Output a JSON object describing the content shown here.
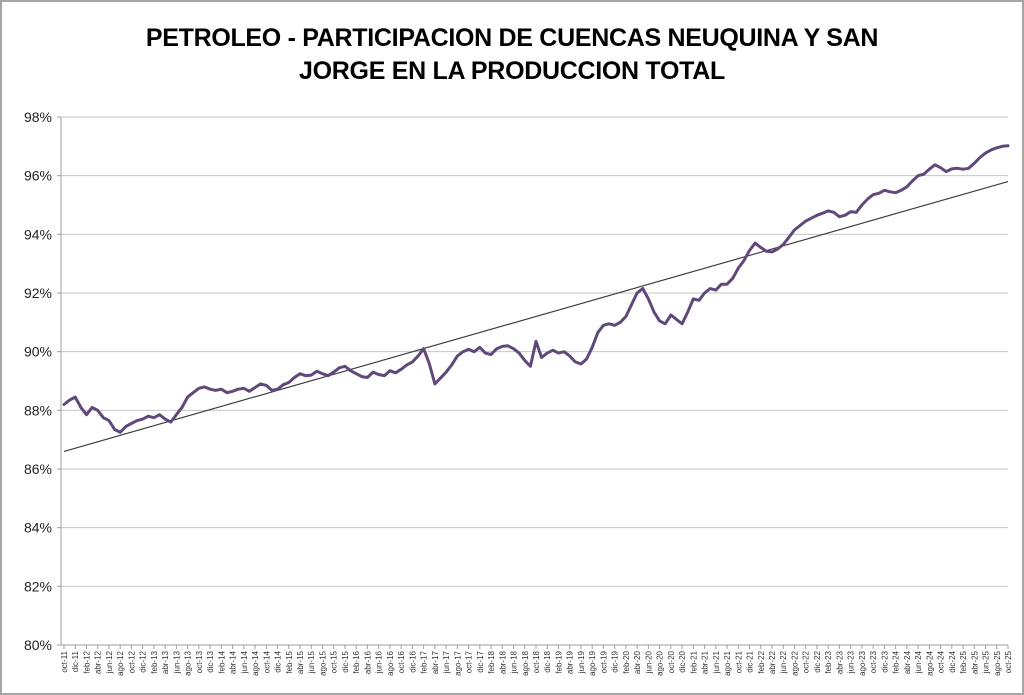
{
  "chart_data": {
    "type": "line",
    "title": "PETROLEO - PARTICIPACION DE CUENCAS NEUQUINA Y SAN JORGE EN LA PRODUCCION TOTAL",
    "xlabel": "",
    "ylabel": "",
    "ylim": [
      80,
      98
    ],
    "y_ticks": [
      "98%",
      "96%",
      "94%",
      "92%",
      "90%",
      "88%",
      "86%",
      "84%",
      "82%",
      "80%"
    ],
    "y_tick_values": [
      98,
      96,
      94,
      92,
      90,
      88,
      86,
      84,
      82,
      80
    ],
    "x_tick_step": 2,
    "grid": true,
    "legend": "none",
    "categories": [
      "oct-11",
      "nov-11",
      "dic-11",
      "ene-12",
      "feb-12",
      "mar-12",
      "abr-12",
      "may-12",
      "jun-12",
      "jul-12",
      "ago-12",
      "sep-12",
      "oct-12",
      "nov-12",
      "dic-12",
      "ene-13",
      "feb-13",
      "mar-13",
      "abr-13",
      "may-13",
      "jun-13",
      "jul-13",
      "ago-13",
      "sep-13",
      "oct-13",
      "nov-13",
      "dic-13",
      "ene-14",
      "feb-14",
      "mar-14",
      "abr-14",
      "may-14",
      "jun-14",
      "jul-14",
      "ago-14",
      "sep-14",
      "oct-14",
      "nov-14",
      "dic-14",
      "ene-15",
      "feb-15",
      "mar-15",
      "abr-15",
      "may-15",
      "jun-15",
      "jul-15",
      "ago-15",
      "sep-15",
      "oct-15",
      "nov-15",
      "dic-15",
      "ene-16",
      "feb-16",
      "mar-16",
      "abr-16",
      "may-16",
      "jun-16",
      "jul-16",
      "ago-16",
      "sep-16",
      "oct-16",
      "nov-16",
      "dic-16",
      "ene-17",
      "feb-17",
      "mar-17",
      "abr-17",
      "may-17",
      "jun-17",
      "jul-17",
      "ago-17",
      "sep-17",
      "oct-17",
      "nov-17",
      "dic-17",
      "ene-18",
      "feb-18",
      "mar-18",
      "abr-18",
      "may-18",
      "jun-18",
      "jul-18",
      "ago-18",
      "sep-18",
      "oct-18",
      "nov-18",
      "dic-18",
      "ene-19",
      "feb-19",
      "mar-19",
      "abr-19",
      "may-19",
      "jun-19",
      "jul-19",
      "ago-19",
      "sep-19",
      "oct-19",
      "nov-19",
      "dic-19",
      "ene-20",
      "feb-20",
      "mar-20",
      "abr-20",
      "may-20",
      "jun-20",
      "jul-20",
      "ago-20",
      "sep-20",
      "oct-20",
      "nov-20",
      "dic-20",
      "ene-21",
      "feb-21",
      "mar-21",
      "abr-21",
      "may-21",
      "jun-21",
      "jul-21",
      "ago-21",
      "sep-21",
      "oct-21",
      "nov-21",
      "dic-21",
      "ene-22",
      "feb-22",
      "mar-22",
      "abr-22",
      "may-22",
      "jun-22",
      "jul-22",
      "ago-22",
      "sep-22",
      "oct-22",
      "nov-22",
      "dic-22",
      "ene-23",
      "feb-23",
      "mar-23",
      "abr-23",
      "may-23",
      "jun-23",
      "jul-23",
      "ago-23",
      "sep-23",
      "oct-23",
      "nov-23",
      "dic-23",
      "ene-24",
      "feb-24",
      "mar-24",
      "abr-24",
      "may-24",
      "jun-24",
      "jul-24",
      "ago-24",
      "sep-24",
      "oct-24",
      "nov-24",
      "dic-24",
      "ene-25",
      "feb-25",
      "mar-25",
      "abr-25",
      "may-25",
      "jun-25",
      "jul-25",
      "ago-25",
      "sep-25",
      "oct-25"
    ],
    "values": [
      88.2,
      88.35,
      88.45,
      88.1,
      87.85,
      88.1,
      88.0,
      87.75,
      87.65,
      87.35,
      87.25,
      87.45,
      87.55,
      87.65,
      87.7,
      87.8,
      87.75,
      87.85,
      87.7,
      87.6,
      87.85,
      88.1,
      88.45,
      88.6,
      88.75,
      88.8,
      88.72,
      88.68,
      88.72,
      88.6,
      88.65,
      88.72,
      88.75,
      88.65,
      88.78,
      88.9,
      88.85,
      88.68,
      88.72,
      88.87,
      88.95,
      89.12,
      89.25,
      89.18,
      89.2,
      89.33,
      89.25,
      89.18,
      89.3,
      89.45,
      89.5,
      89.35,
      89.25,
      89.15,
      89.12,
      89.3,
      89.22,
      89.18,
      89.35,
      89.28,
      89.4,
      89.55,
      89.65,
      89.85,
      90.1,
      89.6,
      88.9,
      89.1,
      89.3,
      89.55,
      89.85,
      90.0,
      90.08,
      90.0,
      90.15,
      89.95,
      89.9,
      90.1,
      90.18,
      90.2,
      90.1,
      89.95,
      89.7,
      89.5,
      90.35,
      89.8,
      89.95,
      90.05,
      89.95,
      90.0,
      89.85,
      89.65,
      89.58,
      89.75,
      90.15,
      90.65,
      90.9,
      90.95,
      90.9,
      91.0,
      91.2,
      91.6,
      92.0,
      92.15,
      91.8,
      91.35,
      91.05,
      90.95,
      91.25,
      91.1,
      90.95,
      91.35,
      91.8,
      91.75,
      92.0,
      92.15,
      92.1,
      92.3,
      92.3,
      92.5,
      92.85,
      93.1,
      93.45,
      93.7,
      93.55,
      93.42,
      93.4,
      93.5,
      93.65,
      93.9,
      94.15,
      94.3,
      94.45,
      94.55,
      94.65,
      94.72,
      94.8,
      94.75,
      94.6,
      94.65,
      94.77,
      94.75,
      95.0,
      95.2,
      95.35,
      95.4,
      95.5,
      95.45,
      95.42,
      95.5,
      95.62,
      95.82,
      96.0,
      96.05,
      96.22,
      96.37,
      96.27,
      96.14,
      96.23,
      96.25,
      96.22,
      96.25,
      96.42,
      96.62,
      96.77,
      96.88,
      96.95,
      97.0,
      97.02
    ],
    "trendline": {
      "start": 86.6,
      "end": 95.8
    },
    "colors": {
      "series": "#5F497A",
      "trendline": "#404040",
      "gridline": "#C6C6C6",
      "axis": "#9E9E9E",
      "tick_label": "#333333",
      "y_label": "#1F1F1F",
      "title": "#000000",
      "background": "#FFFFFF",
      "frame_border": "#A6A6A6"
    }
  }
}
